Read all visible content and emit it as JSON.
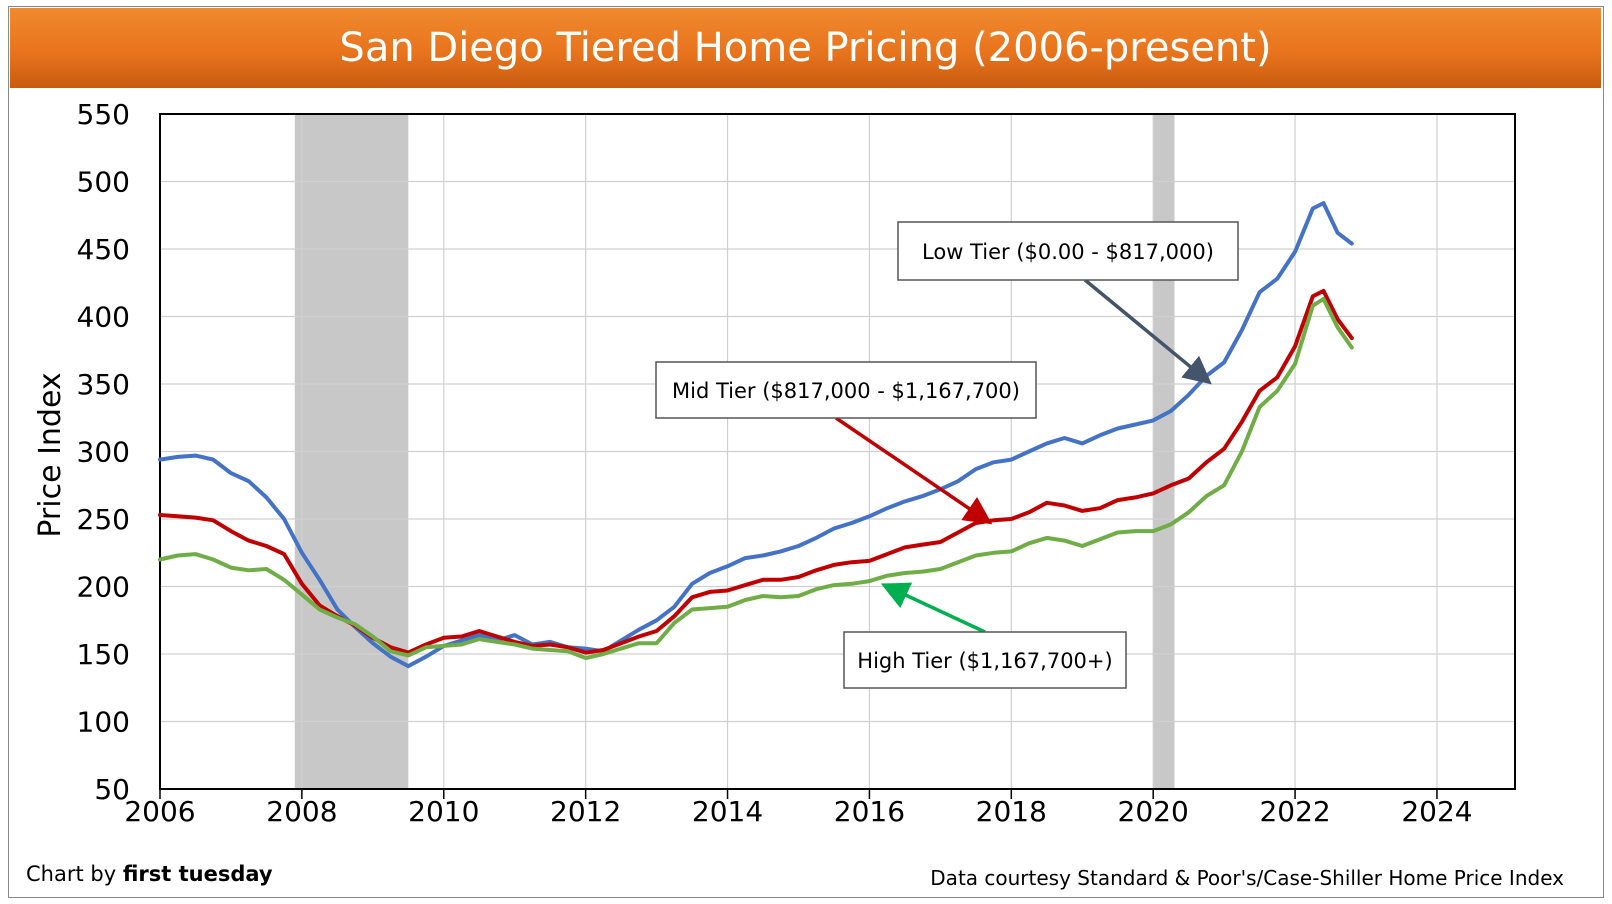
{
  "header": {
    "title": "San Diego Tiered Home Pricing (2006-present)"
  },
  "footer": {
    "credit_prefix": "Chart by ",
    "credit_brand": "first tuesday",
    "source": "Data courtesy Standard & Poor's/Case-Shiller Home Price Index"
  },
  "chart_data": {
    "type": "line",
    "title": "San Diego Tiered Home Pricing (2006-present)",
    "xlabel": "",
    "ylabel": "Price Index",
    "xlim": [
      2006,
      2025.1
    ],
    "ylim": [
      50,
      550
    ],
    "x_ticks": [
      2006,
      2008,
      2010,
      2012,
      2014,
      2016,
      2018,
      2020,
      2022,
      2024
    ],
    "y_ticks": [
      50,
      100,
      150,
      200,
      250,
      300,
      350,
      400,
      450,
      500,
      550
    ],
    "grid": true,
    "shaded_periods": [
      {
        "start": 2007.9,
        "end": 2009.5
      },
      {
        "start": 2020.0,
        "end": 2020.3
      }
    ],
    "series": [
      {
        "name": "Low Tier ($0.00 - $817,000)",
        "color": "#4472c4",
        "points": [
          [
            2006.0,
            294
          ],
          [
            2006.25,
            296
          ],
          [
            2006.5,
            297
          ],
          [
            2006.75,
            294
          ],
          [
            2007.0,
            284
          ],
          [
            2007.25,
            278
          ],
          [
            2007.5,
            266
          ],
          [
            2007.75,
            250
          ],
          [
            2008.0,
            225
          ],
          [
            2008.25,
            205
          ],
          [
            2008.5,
            183
          ],
          [
            2008.75,
            170
          ],
          [
            2009.0,
            158
          ],
          [
            2009.25,
            148
          ],
          [
            2009.5,
            141
          ],
          [
            2009.75,
            148
          ],
          [
            2010.0,
            156
          ],
          [
            2010.25,
            160
          ],
          [
            2010.5,
            164
          ],
          [
            2010.75,
            160
          ],
          [
            2011.0,
            164
          ],
          [
            2011.25,
            157
          ],
          [
            2011.5,
            159
          ],
          [
            2011.75,
            155
          ],
          [
            2012.0,
            154
          ],
          [
            2012.25,
            152
          ],
          [
            2012.5,
            160
          ],
          [
            2012.75,
            168
          ],
          [
            2013.0,
            175
          ],
          [
            2013.25,
            185
          ],
          [
            2013.5,
            202
          ],
          [
            2013.75,
            210
          ],
          [
            2014.0,
            215
          ],
          [
            2014.25,
            221
          ],
          [
            2014.5,
            223
          ],
          [
            2014.75,
            226
          ],
          [
            2015.0,
            230
          ],
          [
            2015.25,
            236
          ],
          [
            2015.5,
            243
          ],
          [
            2015.75,
            247
          ],
          [
            2016.0,
            252
          ],
          [
            2016.25,
            258
          ],
          [
            2016.5,
            263
          ],
          [
            2016.75,
            267
          ],
          [
            2017.0,
            272
          ],
          [
            2017.25,
            278
          ],
          [
            2017.5,
            287
          ],
          [
            2017.75,
            292
          ],
          [
            2018.0,
            294
          ],
          [
            2018.25,
            300
          ],
          [
            2018.5,
            306
          ],
          [
            2018.75,
            310
          ],
          [
            2019.0,
            306
          ],
          [
            2019.25,
            312
          ],
          [
            2019.5,
            317
          ],
          [
            2019.75,
            320
          ],
          [
            2020.0,
            323
          ],
          [
            2020.25,
            330
          ],
          [
            2020.5,
            342
          ],
          [
            2020.75,
            356
          ],
          [
            2021.0,
            366
          ],
          [
            2021.25,
            390
          ],
          [
            2021.5,
            418
          ],
          [
            2021.75,
            428
          ],
          [
            2022.0,
            448
          ],
          [
            2022.25,
            480
          ],
          [
            2022.4,
            484
          ],
          [
            2022.6,
            462
          ],
          [
            2022.8,
            454
          ]
        ]
      },
      {
        "name": "Mid Tier ($817,000 - $1,167,700)",
        "color": "#c00000",
        "points": [
          [
            2006.0,
            253
          ],
          [
            2006.25,
            252
          ],
          [
            2006.5,
            251
          ],
          [
            2006.75,
            249
          ],
          [
            2007.0,
            241
          ],
          [
            2007.25,
            234
          ],
          [
            2007.5,
            230
          ],
          [
            2007.75,
            224
          ],
          [
            2008.0,
            202
          ],
          [
            2008.25,
            186
          ],
          [
            2008.5,
            178
          ],
          [
            2008.75,
            171
          ],
          [
            2009.0,
            162
          ],
          [
            2009.25,
            155
          ],
          [
            2009.5,
            151
          ],
          [
            2009.75,
            157
          ],
          [
            2010.0,
            162
          ],
          [
            2010.25,
            163
          ],
          [
            2010.5,
            167
          ],
          [
            2010.75,
            163
          ],
          [
            2011.0,
            159
          ],
          [
            2011.25,
            156
          ],
          [
            2011.5,
            157
          ],
          [
            2011.75,
            155
          ],
          [
            2012.0,
            151
          ],
          [
            2012.25,
            153
          ],
          [
            2012.5,
            158
          ],
          [
            2012.75,
            163
          ],
          [
            2013.0,
            167
          ],
          [
            2013.25,
            178
          ],
          [
            2013.5,
            192
          ],
          [
            2013.75,
            196
          ],
          [
            2014.0,
            197
          ],
          [
            2014.25,
            201
          ],
          [
            2014.5,
            205
          ],
          [
            2014.75,
            205
          ],
          [
            2015.0,
            207
          ],
          [
            2015.25,
            212
          ],
          [
            2015.5,
            216
          ],
          [
            2015.75,
            218
          ],
          [
            2016.0,
            219
          ],
          [
            2016.25,
            224
          ],
          [
            2016.5,
            229
          ],
          [
            2016.75,
            231
          ],
          [
            2017.0,
            233
          ],
          [
            2017.25,
            240
          ],
          [
            2017.5,
            247
          ],
          [
            2017.75,
            249
          ],
          [
            2018.0,
            250
          ],
          [
            2018.25,
            255
          ],
          [
            2018.5,
            262
          ],
          [
            2018.75,
            260
          ],
          [
            2019.0,
            256
          ],
          [
            2019.25,
            258
          ],
          [
            2019.5,
            264
          ],
          [
            2019.75,
            266
          ],
          [
            2020.0,
            269
          ],
          [
            2020.25,
            275
          ],
          [
            2020.5,
            280
          ],
          [
            2020.75,
            292
          ],
          [
            2021.0,
            302
          ],
          [
            2021.25,
            322
          ],
          [
            2021.5,
            345
          ],
          [
            2021.75,
            355
          ],
          [
            2022.0,
            378
          ],
          [
            2022.25,
            415
          ],
          [
            2022.4,
            419
          ],
          [
            2022.6,
            398
          ],
          [
            2022.8,
            384
          ]
        ]
      },
      {
        "name": "High Tier ($1,167,700+)",
        "color": "#70ad47",
        "points": [
          [
            2006.0,
            220
          ],
          [
            2006.25,
            223
          ],
          [
            2006.5,
            224
          ],
          [
            2006.75,
            220
          ],
          [
            2007.0,
            214
          ],
          [
            2007.25,
            212
          ],
          [
            2007.5,
            213
          ],
          [
            2007.75,
            205
          ],
          [
            2008.0,
            194
          ],
          [
            2008.25,
            183
          ],
          [
            2008.5,
            177
          ],
          [
            2008.75,
            172
          ],
          [
            2009.0,
            163
          ],
          [
            2009.25,
            152
          ],
          [
            2009.5,
            149
          ],
          [
            2009.75,
            155
          ],
          [
            2010.0,
            156
          ],
          [
            2010.25,
            157
          ],
          [
            2010.5,
            161
          ],
          [
            2010.75,
            159
          ],
          [
            2011.0,
            157
          ],
          [
            2011.25,
            154
          ],
          [
            2011.5,
            153
          ],
          [
            2011.75,
            152
          ],
          [
            2012.0,
            147
          ],
          [
            2012.25,
            150
          ],
          [
            2012.5,
            154
          ],
          [
            2012.75,
            158
          ],
          [
            2013.0,
            158
          ],
          [
            2013.25,
            173
          ],
          [
            2013.5,
            183
          ],
          [
            2013.75,
            184
          ],
          [
            2014.0,
            185
          ],
          [
            2014.25,
            190
          ],
          [
            2014.5,
            193
          ],
          [
            2014.75,
            192
          ],
          [
            2015.0,
            193
          ],
          [
            2015.25,
            198
          ],
          [
            2015.5,
            201
          ],
          [
            2015.75,
            202
          ],
          [
            2016.0,
            204
          ],
          [
            2016.25,
            208
          ],
          [
            2016.5,
            210
          ],
          [
            2016.75,
            211
          ],
          [
            2017.0,
            213
          ],
          [
            2017.25,
            218
          ],
          [
            2017.5,
            223
          ],
          [
            2017.75,
            225
          ],
          [
            2018.0,
            226
          ],
          [
            2018.25,
            232
          ],
          [
            2018.5,
            236
          ],
          [
            2018.75,
            234
          ],
          [
            2019.0,
            230
          ],
          [
            2019.25,
            235
          ],
          [
            2019.5,
            240
          ],
          [
            2019.75,
            241
          ],
          [
            2020.0,
            241
          ],
          [
            2020.25,
            246
          ],
          [
            2020.5,
            255
          ],
          [
            2020.75,
            267
          ],
          [
            2021.0,
            275
          ],
          [
            2021.25,
            300
          ],
          [
            2021.5,
            333
          ],
          [
            2021.75,
            345
          ],
          [
            2022.0,
            365
          ],
          [
            2022.25,
            408
          ],
          [
            2022.4,
            413
          ],
          [
            2022.6,
            392
          ],
          [
            2022.8,
            377
          ]
        ]
      }
    ],
    "annotations": [
      {
        "text": "Low Tier ($0.00 - $817,000)",
        "series": 0,
        "arrow_to": [
          2020.75,
          353
        ]
      },
      {
        "text": "Mid Tier ($817,000 - $1,167,700)",
        "series": 1,
        "arrow_to": [
          2017.65,
          249
        ]
      },
      {
        "text": "High Tier ($1,167,700+)",
        "series": 2,
        "arrow_to": [
          2016.25,
          200
        ]
      }
    ]
  }
}
